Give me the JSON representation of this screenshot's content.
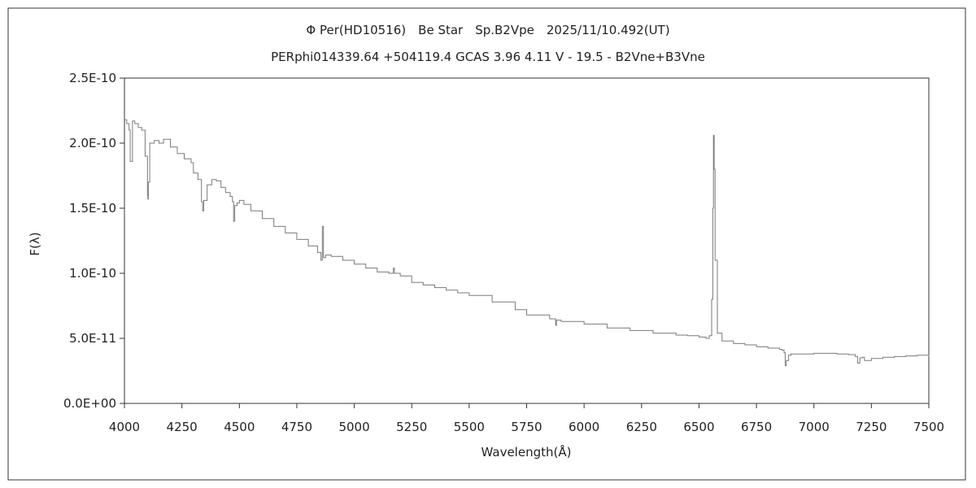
{
  "chart_data": {
    "type": "line",
    "title": "Φ Per(HD10516)　Be Star　Sp.B2Vpe　2025/11/10.492(UT)",
    "subtitle": "PERphi014339.64 +504119.4 GCAS 3.96 4.11 V - 19.5 - B2Vne+B3Vne",
    "xlabel": "Wavelength(Å)",
    "ylabel": "F(λ)",
    "xlim": [
      4000,
      7500
    ],
    "ylim": [
      0,
      2.5e-10
    ],
    "grid": false,
    "legend": "none",
    "line_color": "#7a7a7a",
    "x_ticks": [
      "4000",
      "4250",
      "4500",
      "4750",
      "5000",
      "5250",
      "5500",
      "5750",
      "6000",
      "6250",
      "6500",
      "6750",
      "7000",
      "7250",
      "7500"
    ],
    "y_ticks": [
      "0.0E+00",
      "5.0E-11",
      "1.0E-10",
      "1.5E-10",
      "2.0E-10",
      "2.5E-10"
    ],
    "series": [
      {
        "x": [
          4000,
          4010,
          4020,
          4025,
          4035,
          4045,
          4060,
          4075,
          4090,
          4100,
          4102,
          4104,
          4110,
          4130,
          4150,
          4170,
          4200,
          4230,
          4260,
          4290,
          4300,
          4320,
          4335,
          4340,
          4345,
          4360,
          4380,
          4400,
          4420,
          4440,
          4460,
          4470,
          4475,
          4480,
          4490,
          4500,
          4520,
          4550,
          4600,
          4650,
          4700,
          4750,
          4800,
          4840,
          4855,
          4861,
          4866,
          4875,
          4900,
          4950,
          5000,
          5050,
          5100,
          5150,
          5170,
          5175,
          5200,
          5250,
          5300,
          5350,
          5400,
          5450,
          5500,
          5600,
          5700,
          5750,
          5850,
          5876,
          5880,
          5900,
          6000,
          6100,
          6200,
          6300,
          6400,
          6450,
          6500,
          6530,
          6545,
          6555,
          6560,
          6563,
          6566,
          6570,
          6580,
          6600,
          6650,
          6700,
          6750,
          6800,
          6850,
          6860,
          6870,
          6875,
          6880,
          6890,
          6900,
          7000,
          7100,
          7150,
          7180,
          7190,
          7200,
          7210,
          7220,
          7250,
          7300,
          7350,
          7400,
          7450,
          7500
        ],
        "values": [
          2.18e-10,
          2.15e-10,
          2.1e-10,
          1.86e-10,
          2.17e-10,
          2.15e-10,
          2.12e-10,
          2.1e-10,
          1.9e-10,
          1.6e-10,
          1.57e-10,
          1.7e-10,
          2e-10,
          2.02e-10,
          2e-10,
          2.03e-10,
          1.97e-10,
          1.92e-10,
          1.88e-10,
          1.85e-10,
          1.77e-10,
          1.72e-10,
          1.55e-10,
          1.48e-10,
          1.56e-10,
          1.68e-10,
          1.72e-10,
          1.71e-10,
          1.66e-10,
          1.62e-10,
          1.59e-10,
          1.55e-10,
          1.4e-10,
          1.52e-10,
          1.54e-10,
          1.56e-10,
          1.53e-10,
          1.48e-10,
          1.42e-10,
          1.36e-10,
          1.31e-10,
          1.26e-10,
          1.21e-10,
          1.16e-10,
          1.1e-10,
          1.36e-10,
          1.12e-10,
          1.14e-10,
          1.13e-10,
          1.1e-10,
          1.07e-10,
          1.04e-10,
          1.01e-10,
          1e-10,
          1.04e-10,
          1e-10,
          9.8e-11,
          9.3e-11,
          9.1e-11,
          8.9e-11,
          8.7e-11,
          8.5e-11,
          8.3e-11,
          7.8e-11,
          7.2e-11,
          6.8e-11,
          6.5e-11,
          6e-11,
          6.4e-11,
          6.3e-11,
          6.1e-11,
          5.8e-11,
          5.6e-11,
          5.4e-11,
          5.25e-11,
          5.2e-11,
          5.1e-11,
          5e-11,
          5.2e-11,
          8e-11,
          1.5e-10,
          2.06e-10,
          1.8e-10,
          1.1e-10,
          5.4e-11,
          4.8e-11,
          4.6e-11,
          4.5e-11,
          4.35e-11,
          4.25e-11,
          4.15e-11,
          4.1e-11,
          3.9e-11,
          2.9e-11,
          3.3e-11,
          3.7e-11,
          3.8e-11,
          3.85e-11,
          3.8e-11,
          3.75e-11,
          3.6e-11,
          3.1e-11,
          3.5e-11,
          3.55e-11,
          3.3e-11,
          3.45e-11,
          3.55e-11,
          3.6e-11,
          3.65e-11,
          3.7e-11,
          3.6e-11
        ]
      }
    ]
  }
}
